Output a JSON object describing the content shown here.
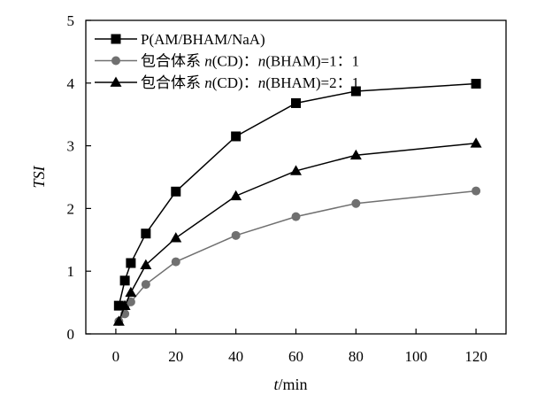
{
  "chart_data": {
    "type": "line",
    "title": "",
    "xlabel": {
      "var": "t",
      "unit": "/min"
    },
    "ylabel": "TSI",
    "xlim": [
      -10,
      130
    ],
    "ylim": [
      0,
      5
    ],
    "xticks": [
      0,
      20,
      40,
      60,
      80,
      100,
      120
    ],
    "yticks": [
      0,
      1,
      2,
      3,
      4,
      5
    ],
    "grid": false,
    "legend_position": "top-left",
    "series": [
      {
        "name": "P(AM/BHAM/NaA)",
        "legend_parts": [
          {
            "t": "P(AM/BHAM/NaA)",
            "i": false
          }
        ],
        "marker": "square",
        "color": "#000000",
        "x": [
          1,
          3,
          5,
          10,
          20,
          40,
          60,
          80,
          120
        ],
        "y": [
          0.45,
          0.85,
          1.13,
          1.6,
          2.27,
          3.15,
          3.68,
          3.87,
          3.99
        ]
      },
      {
        "name": "包合体系 n(CD)：n(BHAM)=1：1",
        "legend_parts": [
          {
            "t": "包合体系 ",
            "i": false
          },
          {
            "t": "n",
            "i": true
          },
          {
            "t": "(CD)：",
            "i": false
          },
          {
            "t": "n",
            "i": true
          },
          {
            "t": "(BHAM)=1：1",
            "i": false
          }
        ],
        "marker": "circle",
        "color": "#707070",
        "x": [
          1,
          3,
          5,
          10,
          20,
          40,
          60,
          80,
          120
        ],
        "y": [
          0.2,
          0.32,
          0.51,
          0.79,
          1.15,
          1.57,
          1.87,
          2.08,
          2.28
        ]
      },
      {
        "name": "包合体系 n(CD)：n(BHAM)=2：1",
        "legend_parts": [
          {
            "t": "包合体系 ",
            "i": false
          },
          {
            "t": "n",
            "i": true
          },
          {
            "t": "(CD)：",
            "i": false
          },
          {
            "t": "n",
            "i": true
          },
          {
            "t": "(BHAM)=2：1",
            "i": false
          }
        ],
        "marker": "triangle",
        "color": "#000000",
        "x": [
          1,
          3,
          5,
          10,
          20,
          40,
          60,
          80,
          120
        ],
        "y": [
          0.2,
          0.45,
          0.66,
          1.1,
          1.53,
          2.2,
          2.6,
          2.85,
          3.04
        ]
      }
    ]
  }
}
